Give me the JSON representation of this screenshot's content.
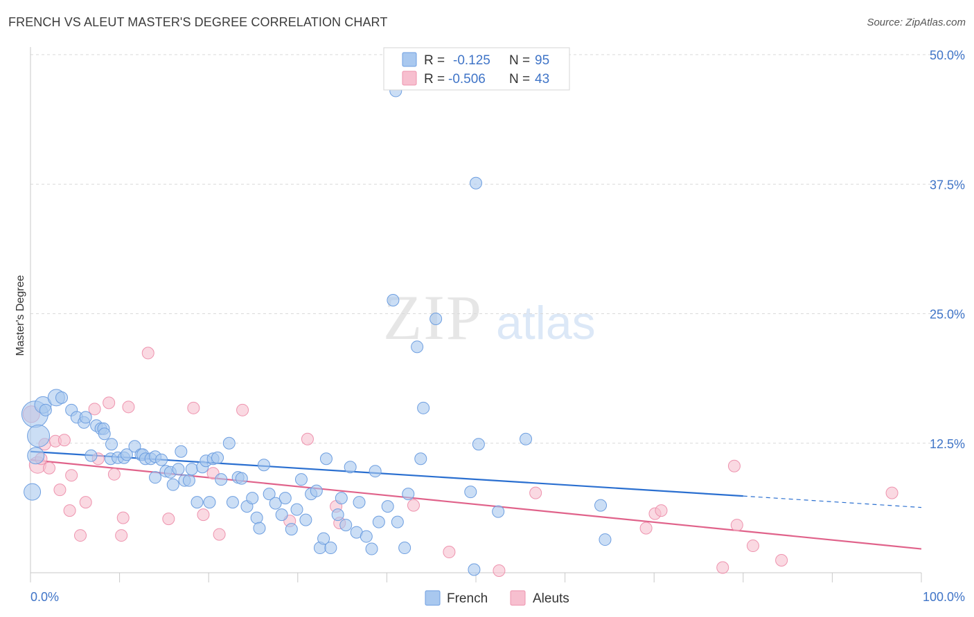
{
  "title": "FRENCH VS ALEUT MASTER'S DEGREE CORRELATION CHART",
  "source": "Source: ZipAtlas.com",
  "watermark": {
    "zip": "ZIP",
    "atlas": "atlas"
  },
  "colors": {
    "french_fill": "#a9c8ef",
    "french_stroke": "#6d9ee0",
    "french_line": "#2a6fd0",
    "aleut_fill": "#f7bfcf",
    "aleut_stroke": "#ee93ae",
    "aleut_line": "#e0628a",
    "tick_text": "#3f74c7",
    "grid": "#d9d9d9"
  },
  "legend_box": {
    "rows": [
      {
        "r_label": "R =",
        "r_value": "-0.125",
        "n_label": "N =",
        "n_value": "95"
      },
      {
        "r_label": "R =",
        "r_value": "-0.506",
        "n_label": "N =",
        "n_value": "43"
      }
    ]
  },
  "chart_data": {
    "type": "scatter",
    "title": "FRENCH VS ALEUT MASTER'S DEGREE CORRELATION CHART",
    "xlabel": "",
    "ylabel": "Master's Degree",
    "xlim": [
      0,
      100
    ],
    "ylim": [
      0,
      50
    ],
    "x_tick_labels": [
      "0.0%",
      "100.0%"
    ],
    "y_ticks": [
      12.5,
      25.0,
      37.5,
      50.0
    ],
    "y_tick_labels": [
      "12.5%",
      "25.0%",
      "37.5%",
      "50.0%"
    ],
    "grid": true,
    "legend_position": "bottom-center",
    "series": [
      {
        "name": "French",
        "r": -0.125,
        "n": 95,
        "trend": {
          "x0": 0,
          "y0": 11.7,
          "x1": 80,
          "y1": 7.4,
          "dashed_to_x": 100,
          "dashed_to_y": 6.3
        },
        "points": [
          [
            0.5,
            15.3,
            5
          ],
          [
            1.4,
            16.2,
            3
          ],
          [
            2.9,
            16.9,
            3
          ],
          [
            0.9,
            13.2,
            4
          ],
          [
            0.6,
            11.3,
            3
          ],
          [
            0.2,
            7.8,
            3
          ],
          [
            1.7,
            15.7,
            2
          ],
          [
            3.5,
            16.9,
            2
          ],
          [
            4.6,
            15.7,
            2
          ],
          [
            5.2,
            15.0,
            2
          ],
          [
            6.0,
            14.5,
            2
          ],
          [
            6.2,
            15.0,
            2
          ],
          [
            7.4,
            14.2,
            2
          ],
          [
            7.9,
            13.9,
            2
          ],
          [
            8.2,
            13.9,
            2
          ],
          [
            8.3,
            13.4,
            2
          ],
          [
            6.8,
            11.3,
            2
          ],
          [
            9.1,
            12.4,
            2
          ],
          [
            9.0,
            11.0,
            2
          ],
          [
            9.8,
            11.1,
            2
          ],
          [
            10.5,
            11.1,
            2
          ],
          [
            10.8,
            11.4,
            2
          ],
          [
            11.7,
            12.2,
            2
          ],
          [
            12.4,
            11.4,
            2
          ],
          [
            12.6,
            11.4,
            2
          ],
          [
            12.9,
            11.0,
            2
          ],
          [
            13.5,
            11.0,
            2
          ],
          [
            14.0,
            11.2,
            2
          ],
          [
            14.0,
            9.2,
            2
          ],
          [
            14.7,
            10.9,
            2
          ],
          [
            15.2,
            9.8,
            2
          ],
          [
            15.7,
            9.7,
            2
          ],
          [
            16.0,
            8.5,
            2
          ],
          [
            16.6,
            10.0,
            2
          ],
          [
            16.9,
            11.7,
            2
          ],
          [
            17.3,
            8.9,
            2
          ],
          [
            17.8,
            8.9,
            2
          ],
          [
            18.1,
            10.0,
            2
          ],
          [
            18.7,
            6.8,
            2
          ],
          [
            19.3,
            10.2,
            2
          ],
          [
            19.7,
            10.8,
            2
          ],
          [
            20.1,
            6.8,
            2
          ],
          [
            20.5,
            11.0,
            2
          ],
          [
            21.0,
            11.1,
            2
          ],
          [
            21.4,
            9.0,
            2
          ],
          [
            22.3,
            12.5,
            2
          ],
          [
            22.7,
            6.8,
            2
          ],
          [
            23.3,
            9.2,
            2
          ],
          [
            23.7,
            9.1,
            2
          ],
          [
            24.3,
            6.4,
            2
          ],
          [
            24.9,
            7.2,
            2
          ],
          [
            25.4,
            5.3,
            2
          ],
          [
            25.7,
            4.3,
            2
          ],
          [
            26.2,
            10.4,
            2
          ],
          [
            26.8,
            7.6,
            2
          ],
          [
            27.5,
            6.7,
            2
          ],
          [
            28.2,
            5.6,
            2
          ],
          [
            28.6,
            7.2,
            2
          ],
          [
            29.3,
            4.2,
            2
          ],
          [
            29.9,
            6.1,
            2
          ],
          [
            30.4,
            9.0,
            2
          ],
          [
            30.9,
            5.1,
            2
          ],
          [
            31.5,
            7.6,
            2
          ],
          [
            32.1,
            7.9,
            2
          ],
          [
            32.5,
            2.4,
            2
          ],
          [
            32.9,
            3.3,
            2
          ],
          [
            33.2,
            11.0,
            2
          ],
          [
            33.7,
            2.4,
            2
          ],
          [
            34.5,
            5.6,
            2
          ],
          [
            34.9,
            7.2,
            2
          ],
          [
            35.4,
            4.6,
            2
          ],
          [
            35.9,
            10.2,
            2
          ],
          [
            36.6,
            3.9,
            2
          ],
          [
            36.9,
            6.8,
            2
          ],
          [
            37.7,
            3.5,
            2
          ],
          [
            38.3,
            2.3,
            2
          ],
          [
            38.7,
            9.8,
            2
          ],
          [
            39.1,
            4.9,
            2
          ],
          [
            40.1,
            6.4,
            2
          ],
          [
            40.7,
            26.3,
            2
          ],
          [
            41.0,
            46.5,
            2
          ],
          [
            41.2,
            4.9,
            2
          ],
          [
            42.0,
            2.4,
            2
          ],
          [
            42.4,
            7.6,
            2
          ],
          [
            43.4,
            21.8,
            2
          ],
          [
            43.8,
            11.0,
            2
          ],
          [
            44.1,
            15.9,
            2
          ],
          [
            45.5,
            24.5,
            2
          ],
          [
            49.4,
            7.8,
            2
          ],
          [
            49.8,
            0.3,
            2
          ],
          [
            50.0,
            37.6,
            2
          ],
          [
            50.3,
            12.4,
            2
          ],
          [
            52.5,
            5.9,
            2
          ],
          [
            55.6,
            12.9,
            2
          ],
          [
            64.0,
            6.5,
            2
          ],
          [
            64.5,
            3.2,
            2
          ]
        ]
      },
      {
        "name": "Aleuts",
        "r": -0.506,
        "n": 43,
        "trend": {
          "x0": 0,
          "y0": 10.9,
          "x1": 100,
          "y1": 2.3
        },
        "points": [
          [
            0.1,
            15.3,
            3
          ],
          [
            0.8,
            10.4,
            3
          ],
          [
            1.2,
            11.0,
            2
          ],
          [
            1.6,
            12.4,
            2
          ],
          [
            2.1,
            10.1,
            2
          ],
          [
            2.8,
            12.7,
            2
          ],
          [
            3.3,
            8.0,
            2
          ],
          [
            3.8,
            12.8,
            2
          ],
          [
            4.4,
            6.0,
            2
          ],
          [
            4.6,
            9.4,
            2
          ],
          [
            5.6,
            3.6,
            2
          ],
          [
            6.2,
            6.8,
            2
          ],
          [
            7.2,
            15.8,
            2
          ],
          [
            7.6,
            11.0,
            2
          ],
          [
            8.8,
            16.4,
            2
          ],
          [
            9.4,
            9.5,
            2
          ],
          [
            10.4,
            5.3,
            2
          ],
          [
            10.2,
            3.6,
            2
          ],
          [
            11.0,
            16.0,
            2
          ],
          [
            13.2,
            21.2,
            2
          ],
          [
            15.5,
            5.2,
            2
          ],
          [
            18.3,
            15.9,
            2
          ],
          [
            19.4,
            5.6,
            2
          ],
          [
            20.5,
            9.6,
            2
          ],
          [
            21.2,
            3.7,
            2
          ],
          [
            23.8,
            15.7,
            2
          ],
          [
            29.1,
            5.0,
            2
          ],
          [
            31.1,
            12.9,
            2
          ],
          [
            34.3,
            6.4,
            2
          ],
          [
            34.7,
            4.8,
            2
          ],
          [
            43.0,
            6.5,
            2
          ],
          [
            47.0,
            2.0,
            2
          ],
          [
            52.6,
            0.2,
            2
          ],
          [
            56.7,
            7.7,
            2
          ],
          [
            69.1,
            4.3,
            2
          ],
          [
            70.1,
            5.7,
            2
          ],
          [
            70.8,
            6.0,
            2
          ],
          [
            77.7,
            0.5,
            2
          ],
          [
            79.0,
            10.3,
            2
          ],
          [
            79.3,
            4.6,
            2
          ],
          [
            81.1,
            2.6,
            2
          ],
          [
            84.3,
            1.2,
            2
          ],
          [
            96.7,
            7.7,
            2
          ]
        ]
      }
    ]
  }
}
